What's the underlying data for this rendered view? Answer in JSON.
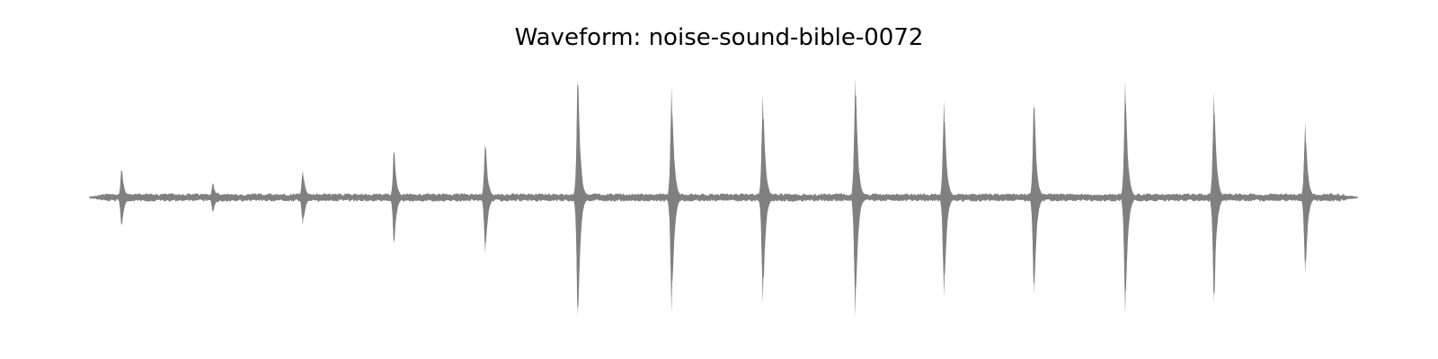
{
  "chart_data": {
    "type": "area",
    "title": "Waveform: noise-sound-bible-0072",
    "xlabel": "",
    "ylabel": "",
    "axes_visible": false,
    "grid": false,
    "xlim": [
      0,
      1
    ],
    "ylim": [
      -1,
      1
    ],
    "color": "#808080",
    "baseline_noise": 0.02,
    "peaks": [
      {
        "t": 0.025,
        "up": 0.23,
        "down": 0.24
      },
      {
        "t": 0.097,
        "up": 0.12,
        "down": 0.13
      },
      {
        "t": 0.168,
        "up": 0.23,
        "down": 0.23
      },
      {
        "t": 0.24,
        "up": 0.38,
        "down": 0.39
      },
      {
        "t": 0.312,
        "up": 0.45,
        "down": 0.47
      },
      {
        "t": 0.385,
        "up": 0.99,
        "down": 1.0
      },
      {
        "t": 0.459,
        "up": 0.93,
        "down": 0.96
      },
      {
        "t": 0.531,
        "up": 0.87,
        "down": 0.88
      },
      {
        "t": 0.604,
        "up": 1.0,
        "down": 1.0
      },
      {
        "t": 0.674,
        "up": 0.81,
        "down": 0.83
      },
      {
        "t": 0.745,
        "up": 0.79,
        "down": 0.81
      },
      {
        "t": 0.817,
        "up": 0.98,
        "down": 0.98
      },
      {
        "t": 0.887,
        "up": 0.88,
        "down": 0.87
      },
      {
        "t": 0.959,
        "up": 0.63,
        "down": 0.64
      }
    ]
  }
}
